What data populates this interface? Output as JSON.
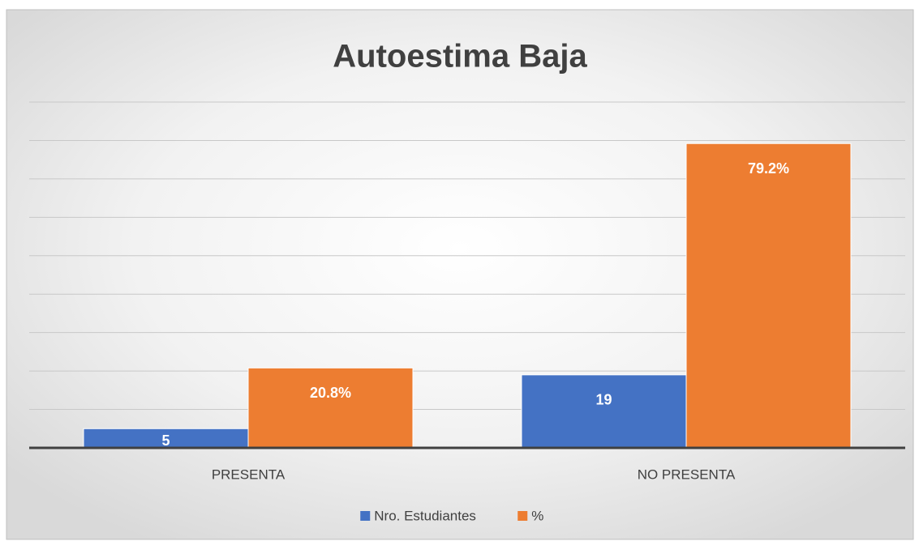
{
  "chart_data": {
    "type": "bar",
    "title": "Autoestima Baja",
    "categories": [
      "PRESENTA",
      "NO PRESENTA"
    ],
    "series": [
      {
        "name": "Nro. Estudiantes",
        "color": "#4472c4",
        "values": [
          5,
          19
        ]
      },
      {
        "name": "%",
        "color": "#ed7d31",
        "values": [
          20.8,
          79.2
        ],
        "value_labels": [
          "20.8%",
          "79.2%"
        ]
      }
    ],
    "ylim": [
      0,
      90
    ],
    "yticks": [
      0,
      10,
      20,
      30,
      40,
      50,
      60,
      70,
      80,
      90
    ],
    "grid": true,
    "legend": "bottom"
  }
}
